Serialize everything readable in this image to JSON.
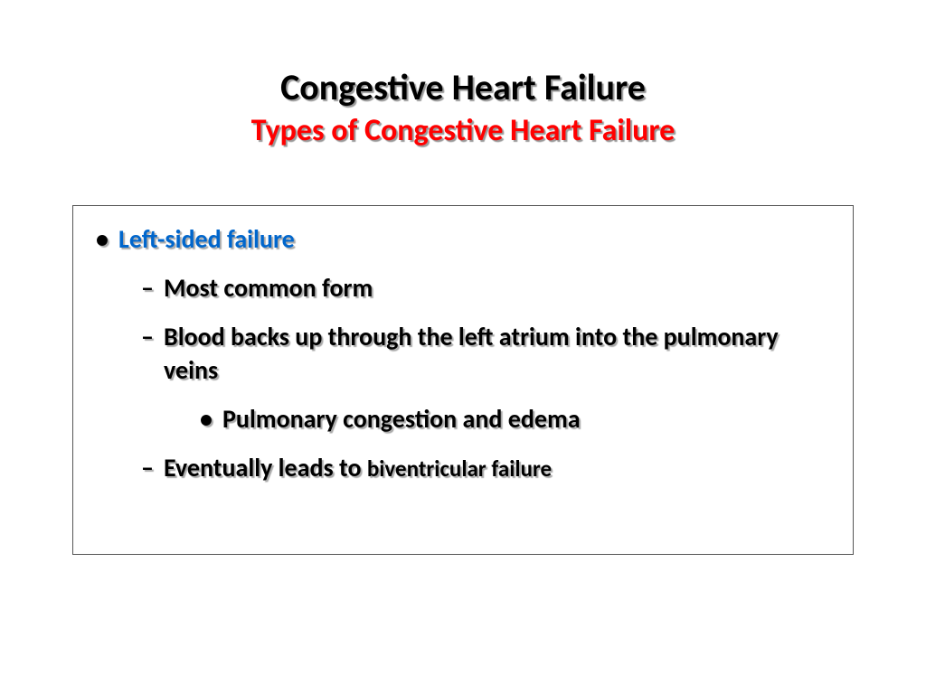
{
  "title": "Congestive Heart Failure",
  "subtitle": "Types of Congestive Heart Failure",
  "heading": "Left-sided failure",
  "sub1": "Most common form",
  "sub2": "Blood backs up through the left atrium into the pulmonary veins",
  "sub2a": "Pulmonary congestion and edema",
  "sub3a": "Eventually leads to ",
  "sub3b": "biventricular failure",
  "colors": {
    "title": "#000000",
    "subtitle": "#ff0000",
    "heading": "#0066cc",
    "body": "#000000",
    "shadow": "#999999",
    "border": "#555555",
    "background": "#ffffff"
  },
  "fontsizes": {
    "title": 40,
    "subtitle": 34,
    "body": 28,
    "smaller": 25
  }
}
